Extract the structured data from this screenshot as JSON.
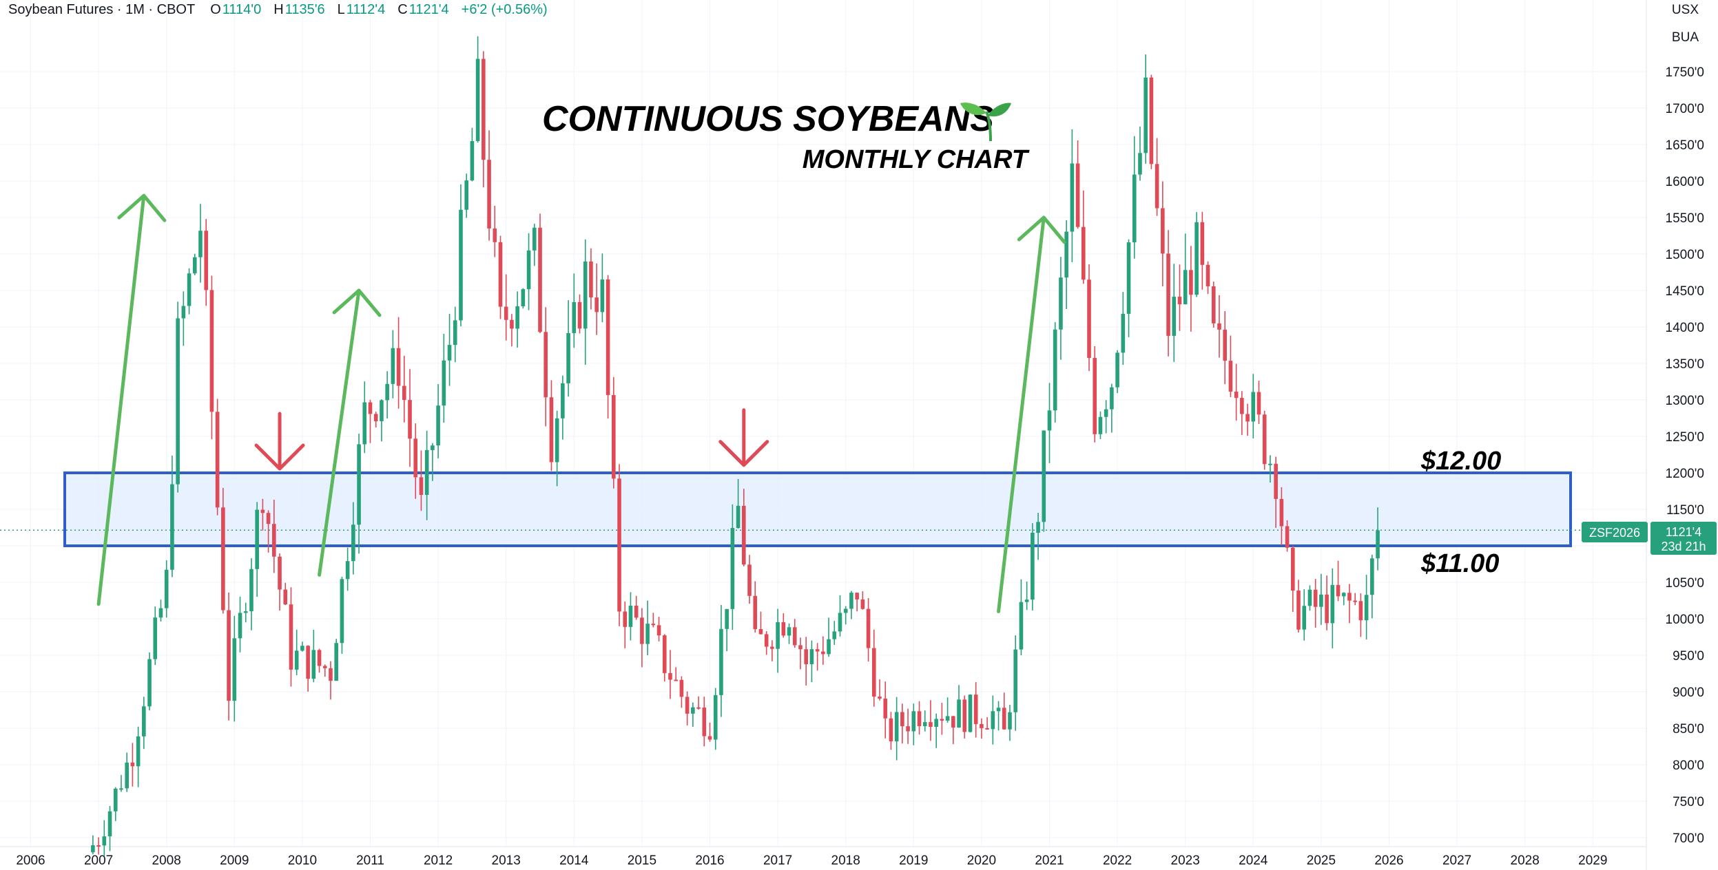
{
  "header": {
    "symbol": "Soybean Futures · 1M · CBOT",
    "open_key": "O",
    "open": "1114'0",
    "high_key": "H",
    "high": "1135'6",
    "low_key": "L",
    "low": "1112'4",
    "close_key": "C",
    "close": "1121'4",
    "change": "+6'2 (+0.56%)"
  },
  "units": {
    "currency": "USX",
    "unit": "BUA"
  },
  "annotations": {
    "title": "CONTINUOUS SOYBEANS",
    "title_icon": "seedling-icon",
    "subtitle": "MONTHLY CHART",
    "upper_level": "$12.00",
    "lower_level": "$11.00"
  },
  "price_tag": {
    "ticker": "ZSF2026",
    "price": "1121'4",
    "countdown": "23d 21h"
  },
  "colors": {
    "up": "#26a17b",
    "down": "#e04a56",
    "arrow_up": "#5cb85c",
    "arrow_down": "#e04a56",
    "zone_fill": "#e5f0ff",
    "zone_border": "#2d5ec9",
    "text": "#131722",
    "grid": "#f0f3fa"
  },
  "chart_data": {
    "type": "candlestick",
    "interval": "monthly",
    "y_axis": {
      "min": 700,
      "max": 1750,
      "ticks": [
        "700'0",
        "750'0",
        "800'0",
        "850'0",
        "900'0",
        "950'0",
        "1000'0",
        "1050'0",
        "1100'0",
        "1150'0",
        "1200'0",
        "1250'0",
        "1300'0",
        "1350'0",
        "1400'0",
        "1450'0",
        "1500'0",
        "1550'0",
        "1600'0",
        "1650'0",
        "1700'0",
        "1750'0"
      ]
    },
    "x_axis": {
      "labels": [
        "2006",
        "2007",
        "2008",
        "2009",
        "2010",
        "2011",
        "2012",
        "2013",
        "2014",
        "2015",
        "2016",
        "2017",
        "2018",
        "2019",
        "2020",
        "2021",
        "2022",
        "2023",
        "2024",
        "2025",
        "2026",
        "2027",
        "2028",
        "2029"
      ]
    },
    "support_zone": [
      1100,
      1200
    ],
    "current_price": 1121.5,
    "close_path": [
      [
        "2006-11",
        680
      ],
      [
        "2007-01",
        700
      ],
      [
        "2007-07",
        820
      ],
      [
        "2008-01",
        1050
      ],
      [
        "2008-03",
        1380
      ],
      [
        "2008-07",
        1540
      ],
      [
        "2008-12",
        900
      ],
      [
        "2009-06",
        1180
      ],
      [
        "2009-11",
        950
      ],
      [
        "2010-06",
        930
      ],
      [
        "2010-12",
        1280
      ],
      [
        "2011-06",
        1350
      ],
      [
        "2011-10",
        1150
      ],
      [
        "2012-03",
        1380
      ],
      [
        "2012-08",
        1720
      ],
      [
        "2012-12",
        1400
      ],
      [
        "2013-06",
        1500
      ],
      [
        "2013-09",
        1250
      ],
      [
        "2014-03",
        1470
      ],
      [
        "2014-06",
        1440
      ],
      [
        "2014-09",
        1020
      ],
      [
        "2015-03",
        970
      ],
      [
        "2015-09",
        880
      ],
      [
        "2016-01",
        860
      ],
      [
        "2016-06",
        1150
      ],
      [
        "2016-09",
        960
      ],
      [
        "2017-03",
        1010
      ],
      [
        "2017-06",
        940
      ],
      [
        "2018-01",
        1000
      ],
      [
        "2018-03",
        1040
      ],
      [
        "2018-08",
        840
      ],
      [
        "2019-03",
        880
      ],
      [
        "2019-08",
        870
      ],
      [
        "2020-03",
        870
      ],
      [
        "2020-05",
        840
      ],
      [
        "2020-11",
        1150
      ],
      [
        "2021-05",
        1600
      ],
      [
        "2021-09",
        1280
      ],
      [
        "2021-12",
        1330
      ],
      [
        "2022-06",
        1700
      ],
      [
        "2022-10",
        1400
      ],
      [
        "2023-03",
        1500
      ],
      [
        "2023-06",
        1380
      ],
      [
        "2023-11",
        1320
      ],
      [
        "2024-05",
        1200
      ],
      [
        "2024-08",
        1010
      ],
      [
        "2025-03",
        1020
      ],
      [
        "2025-09",
        1020
      ],
      [
        "2025-11",
        1121
      ]
    ],
    "markers": [
      {
        "type": "arrow-up",
        "from": [
          "2007-01",
          1020
        ],
        "to": [
          "2007-09",
          1580
        ]
      },
      {
        "type": "arrow-up",
        "from": [
          "2010-04",
          1060
        ],
        "to": [
          "2010-11",
          1450
        ]
      },
      {
        "type": "arrow-up",
        "from": [
          "2020-04",
          1010
        ],
        "to": [
          "2020-12",
          1550
        ]
      },
      {
        "type": "arrow-down",
        "at": [
          "2009-09",
          1200
        ]
      },
      {
        "type": "arrow-down",
        "at": [
          "2016-07",
          1205
        ]
      }
    ]
  }
}
